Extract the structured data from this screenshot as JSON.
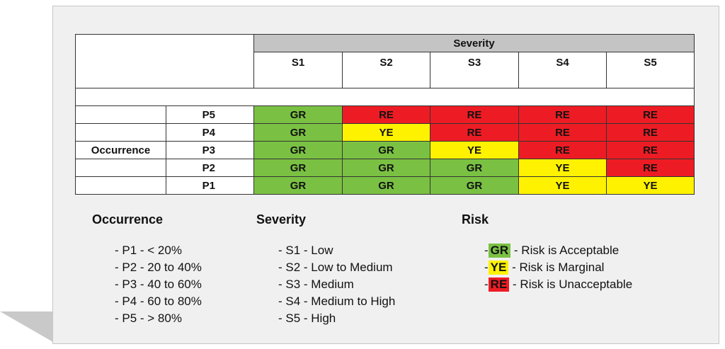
{
  "matrix": {
    "severity_title": "Severity",
    "severity_levels": [
      "S1",
      "S2",
      "S3",
      "S4",
      "S5"
    ],
    "occurrence_label": "Occurrence",
    "rows": [
      {
        "label": "P5",
        "cells": [
          "GR",
          "RE",
          "RE",
          "RE",
          "RE"
        ]
      },
      {
        "label": "P4",
        "cells": [
          "GR",
          "YE",
          "RE",
          "RE",
          "RE"
        ]
      },
      {
        "label": "P3",
        "cells": [
          "GR",
          "GR",
          "YE",
          "RE",
          "RE"
        ]
      },
      {
        "label": "P2",
        "cells": [
          "GR",
          "GR",
          "GR",
          "YE",
          "RE"
        ]
      },
      {
        "label": "P1",
        "cells": [
          "GR",
          "GR",
          "GR",
          "YE",
          "YE"
        ]
      }
    ],
    "colors": {
      "GR": "#7ac143",
      "YE": "#fff200",
      "RE": "#ed1c24"
    }
  },
  "legend": {
    "occurrence": {
      "title": "Occurrence",
      "items": [
        "- P1 - < 20%",
        "- P2 - 20 to 40%",
        "- P3 - 40 to 60%",
        "- P4 - 60 to 80%",
        "- P5 - > 80%"
      ]
    },
    "severity": {
      "title": "Severity",
      "items": [
        "- S1 - Low",
        "- S2 - Low to Medium",
        "- S3 - Medium",
        "- S4 - Medium to High",
        "- S5 - High"
      ]
    },
    "risk": {
      "title": "Risk",
      "items": [
        {
          "prefix": "-",
          "code": "GR",
          "text": "- Risk is Acceptable"
        },
        {
          "prefix": "-",
          "code": "YE",
          "text": "- Risk is Marginal"
        },
        {
          "prefix": "-",
          "code": "RE",
          "text": "- Risk is Unacceptable"
        }
      ]
    }
  }
}
